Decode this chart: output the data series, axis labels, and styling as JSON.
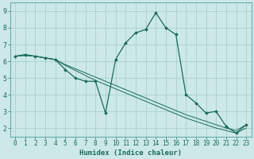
{
  "title": "",
  "xlabel": "Humidex (Indice chaleur)",
  "ylabel": "",
  "background_color": "#cce8e8",
  "grid_color": "#aacfcf",
  "line_color": "#1a6b5a",
  "xlim": [
    -0.5,
    23.5
  ],
  "ylim": [
    1.5,
    9.5
  ],
  "xticks": [
    0,
    1,
    2,
    3,
    4,
    5,
    6,
    7,
    8,
    9,
    10,
    11,
    12,
    13,
    14,
    15,
    16,
    17,
    18,
    19,
    20,
    21,
    22,
    23
  ],
  "yticks": [
    2,
    3,
    4,
    5,
    6,
    7,
    8,
    9
  ],
  "series_main": {
    "x": [
      0,
      1,
      2,
      3,
      4,
      5,
      6,
      7,
      8,
      9,
      10,
      11,
      12,
      13,
      14,
      15,
      16,
      17,
      18,
      19,
      20,
      21,
      22,
      23
    ],
    "y": [
      6.3,
      6.4,
      6.3,
      6.2,
      6.1,
      5.5,
      5.0,
      4.8,
      4.8,
      2.9,
      6.1,
      7.1,
      7.7,
      7.9,
      8.9,
      8.0,
      7.6,
      4.0,
      3.5,
      2.9,
      3.0,
      2.1,
      1.7,
      2.2
    ]
  },
  "series_line1": {
    "x": [
      0,
      1,
      2,
      3,
      4,
      5,
      6,
      7,
      8,
      9,
      10,
      11,
      12,
      13,
      14,
      15,
      16,
      17,
      18,
      19,
      20,
      21,
      22,
      23
    ],
    "y": [
      6.3,
      6.35,
      6.3,
      6.2,
      6.1,
      5.8,
      5.55,
      5.3,
      5.05,
      4.8,
      4.55,
      4.3,
      4.05,
      3.8,
      3.55,
      3.3,
      3.05,
      2.8,
      2.6,
      2.4,
      2.2,
      2.0,
      1.85,
      2.2
    ]
  },
  "series_line2": {
    "x": [
      0,
      1,
      2,
      3,
      4,
      5,
      6,
      7,
      8,
      9,
      10,
      11,
      12,
      13,
      14,
      15,
      16,
      17,
      18,
      19,
      20,
      21,
      22,
      23
    ],
    "y": [
      6.3,
      6.35,
      6.3,
      6.2,
      6.1,
      5.75,
      5.45,
      5.15,
      4.85,
      4.6,
      4.35,
      4.1,
      3.85,
      3.6,
      3.35,
      3.1,
      2.85,
      2.6,
      2.4,
      2.2,
      2.0,
      1.85,
      1.7,
      2.0
    ]
  },
  "xlabel_fontsize": 6.5,
  "tick_fontsize": 5.5,
  "ytick_fontsize": 6.0
}
